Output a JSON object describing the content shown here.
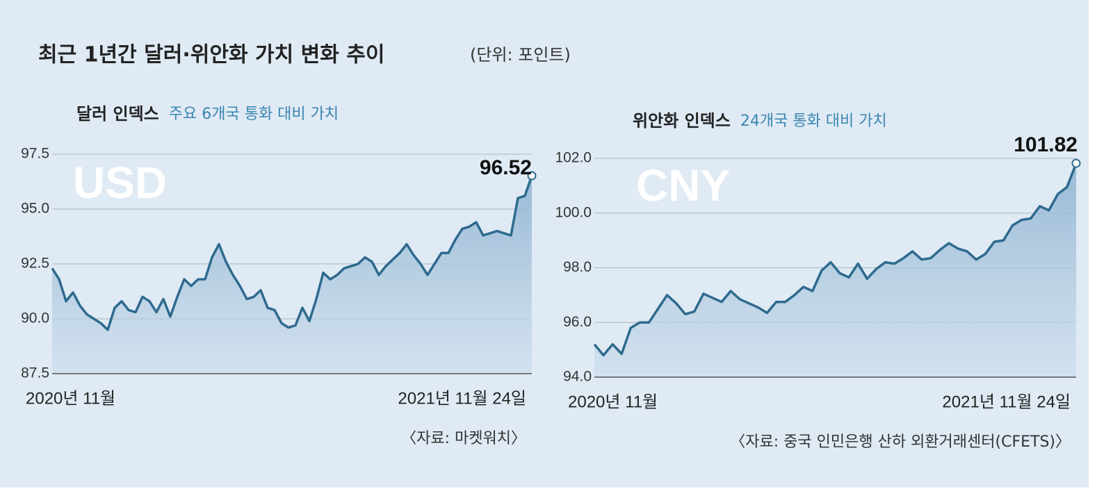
{
  "title": "최근 1년간 달러·위안화 가치 변화 추이",
  "unit_note": "(단위: 포인트)",
  "chart_data": [
    {
      "type": "line",
      "title": "달러 인덱스",
      "subtitle": "주요 6개국 통화 대비 가치",
      "watermark": "USD",
      "source": "〈자료: 마켓워치〉",
      "color": "#2e6a8e",
      "area": true,
      "grid": true,
      "label_last": true,
      "ylim": [
        87.5,
        97.5
      ],
      "yticks": [
        87.5,
        {
          "value": 90,
          "label": "90.0"
        },
        92.5,
        {
          "value": 95,
          "label": "95.0"
        },
        97.5
      ],
      "categories": [
        "2020년 11월",
        null,
        null,
        null,
        null,
        null,
        null,
        null,
        null,
        null,
        null,
        null,
        null,
        null,
        null,
        null,
        null,
        null,
        null,
        null,
        null,
        null,
        null,
        null,
        null,
        null,
        null,
        null,
        null,
        null,
        null,
        null,
        null,
        null,
        null,
        null,
        null,
        null,
        null,
        null,
        null,
        null,
        null,
        null,
        null,
        null,
        null,
        null,
        null,
        null,
        null,
        null,
        null,
        null,
        null,
        null,
        null,
        null,
        null,
        null,
        null,
        null,
        null,
        null,
        null,
        null,
        null,
        null,
        null,
        "2021년 11월 24일"
      ],
      "values": [
        92.3,
        91.8,
        90.8,
        91.2,
        90.6,
        90.2,
        90.0,
        89.8,
        89.5,
        90.5,
        90.8,
        90.4,
        90.3,
        91.0,
        90.8,
        90.3,
        90.9,
        90.1,
        91.0,
        91.8,
        91.5,
        91.8,
        91.8,
        92.8,
        93.4,
        92.6,
        92.0,
        91.5,
        90.9,
        91.0,
        91.3,
        90.5,
        90.4,
        89.8,
        89.6,
        89.7,
        90.5,
        89.9,
        90.9,
        92.1,
        91.8,
        92.0,
        92.3,
        92.4,
        92.5,
        92.8,
        92.6,
        92.0,
        92.4,
        92.7,
        93.0,
        93.4,
        92.9,
        92.5,
        92.0,
        92.5,
        93.0,
        93.0,
        93.6,
        94.1,
        94.2,
        94.4,
        93.8,
        93.9,
        94.0,
        93.9,
        93.8,
        95.5,
        95.6,
        96.52
      ]
    },
    {
      "type": "line",
      "title": "위안화 인덱스",
      "subtitle": "24개국 통화 대비 가치",
      "watermark": "CNY",
      "source": "〈자료: 중국 인민은행 산하 외환거래센터(CFETS)〉",
      "color": "#2e6a8e",
      "area": true,
      "grid": true,
      "label_last": true,
      "ylim": [
        94,
        102
      ],
      "yticks": [
        {
          "value": 94,
          "label": "94.0"
        },
        {
          "value": 96,
          "label": "96.0"
        },
        {
          "value": 98,
          "label": "98.0"
        },
        {
          "value": 100,
          "label": "100.0"
        },
        {
          "value": 102,
          "label": "102.0"
        }
      ],
      "categories": [
        "2020년 11월",
        null,
        null,
        null,
        null,
        null,
        null,
        null,
        null,
        null,
        null,
        null,
        null,
        null,
        null,
        null,
        null,
        null,
        null,
        null,
        null,
        null,
        null,
        null,
        null,
        null,
        null,
        null,
        null,
        null,
        null,
        null,
        null,
        null,
        null,
        null,
        null,
        null,
        null,
        null,
        null,
        null,
        null,
        null,
        null,
        null,
        null,
        null,
        null,
        null,
        null,
        null,
        null,
        "2021년 11월 24일"
      ],
      "values": [
        95.2,
        94.8,
        95.2,
        94.85,
        95.8,
        96.0,
        96.0,
        96.5,
        97.0,
        96.7,
        96.3,
        96.4,
        97.05,
        96.9,
        96.75,
        97.15,
        96.85,
        96.7,
        96.55,
        96.35,
        96.75,
        96.75,
        97.0,
        97.3,
        97.15,
        97.9,
        98.2,
        97.8,
        97.65,
        98.15,
        97.6,
        97.95,
        98.2,
        98.15,
        98.35,
        98.6,
        98.3,
        98.35,
        98.65,
        98.9,
        98.7,
        98.6,
        98.3,
        98.5,
        98.95,
        99.0,
        99.55,
        99.75,
        99.8,
        100.25,
        100.1,
        100.7,
        100.95,
        101.82
      ]
    }
  ]
}
